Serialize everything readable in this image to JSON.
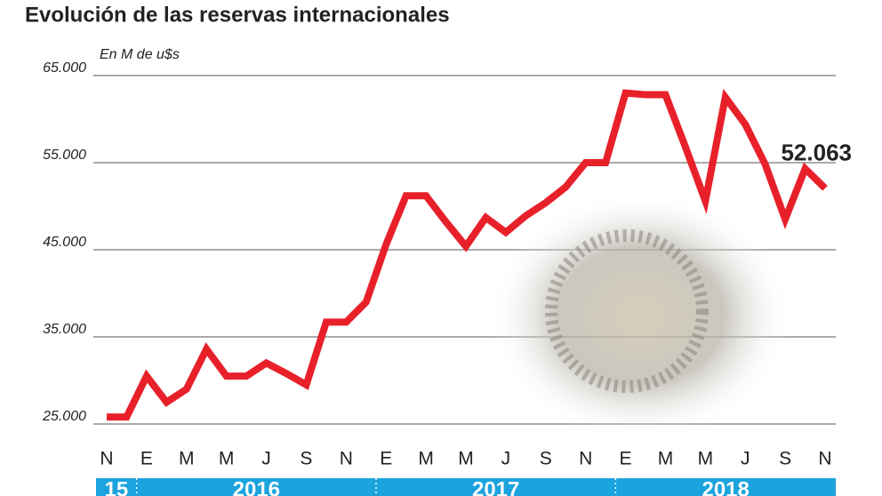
{
  "chart_data": {
    "type": "line",
    "title": "Evolución de las reservas internacionales",
    "subtitle": "En M de u$s",
    "categories": [
      "N",
      null,
      "E",
      null,
      "M",
      null,
      "M",
      null,
      "J",
      null,
      "S",
      null,
      "N",
      null,
      "E",
      null,
      "M",
      null,
      "M",
      null,
      "J",
      null,
      "S",
      null,
      "N",
      null,
      "E",
      null,
      "M",
      null,
      "M",
      null,
      "J",
      null,
      "S",
      null,
      "N"
    ],
    "series": [
      {
        "color": "#e8202a",
        "values": [
          25800,
          25800,
          30500,
          27500,
          29000,
          33600,
          30500,
          30500,
          32000,
          30800,
          29500,
          36700,
          36700,
          39000,
          45600,
          51200,
          51200,
          48200,
          45400,
          48700,
          47000,
          48900,
          50400,
          52200,
          55000,
          55000,
          63000,
          62800,
          62800,
          56800,
          50600,
          62500,
          59400,
          54800,
          48500,
          54300,
          52063
        ],
        "value_labels": [
          null,
          null,
          null,
          null,
          null,
          null,
          null,
          null,
          null,
          null,
          null,
          null,
          null,
          null,
          null,
          null,
          null,
          null,
          null,
          null,
          null,
          null,
          null,
          null,
          null,
          null,
          null,
          null,
          null,
          null,
          null,
          null,
          null,
          null,
          null,
          null,
          "52.063"
        ]
      }
    ],
    "x_groups": [
      "15",
      "2016",
      "2017",
      "2018"
    ],
    "group_color": "#1ba3dd",
    "ylim": [
      25000,
      65000
    ],
    "yticks": [
      {
        "value": 25000,
        "label": "25.000"
      },
      {
        "value": 35000,
        "label": "35.000"
      },
      {
        "value": 45000,
        "label": "45.000"
      },
      {
        "value": 55000,
        "label": "55.000"
      },
      {
        "value": 65000,
        "label": "65.000"
      }
    ],
    "grid": true
  }
}
